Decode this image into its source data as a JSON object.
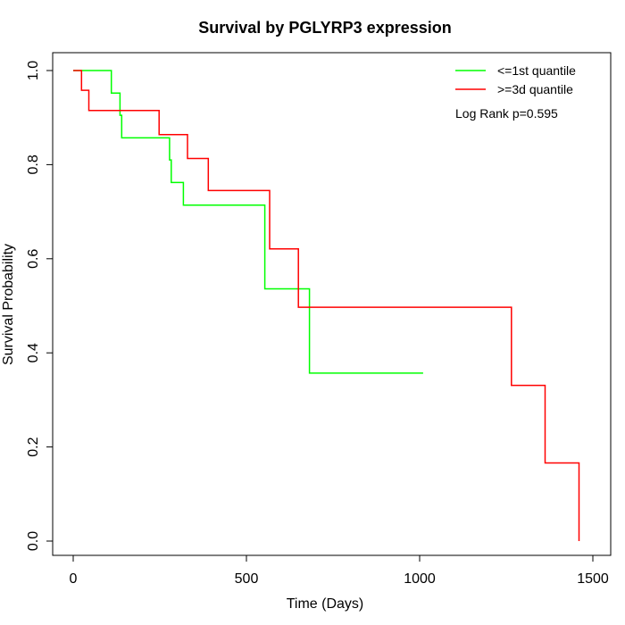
{
  "chart_data": {
    "type": "line",
    "title": "Survival by PGLYRP3 expression",
    "xlabel": "Time (Days)",
    "ylabel": "Survival Probability",
    "xlim": [
      0,
      1500
    ],
    "ylim": [
      0,
      1.0
    ],
    "x_ticks": [
      "0",
      "500",
      "1000",
      "1500"
    ],
    "y_ticks": [
      "0.0",
      "0.2",
      "0.4",
      "0.6",
      "0.8",
      "1.0"
    ],
    "grid": false,
    "legend_position": "top-right",
    "annotation": "Log Rank p=0.595",
    "series": [
      {
        "name": "<=1st quantile",
        "color": "#00ff00",
        "step": true,
        "x": [
          0,
          110,
          110,
          135,
          135,
          140,
          140,
          278,
          278,
          283,
          283,
          318,
          318,
          553,
          553,
          682,
          682,
          1010
        ],
        "y": [
          1.0,
          1.0,
          0.952,
          0.952,
          0.905,
          0.905,
          0.857,
          0.857,
          0.81,
          0.81,
          0.762,
          0.762,
          0.714,
          0.714,
          0.536,
          0.536,
          0.357,
          0.357
        ]
      },
      {
        "name": ">=3d quantile",
        "color": "#ff0000",
        "step": true,
        "x": [
          0,
          24,
          24,
          45,
          45,
          248,
          248,
          330,
          330,
          390,
          390,
          567,
          567,
          650,
          650,
          1265,
          1265,
          1362,
          1362,
          1460,
          1460
        ],
        "y": [
          1.0,
          1.0,
          0.958,
          0.958,
          0.915,
          0.915,
          0.864,
          0.864,
          0.813,
          0.813,
          0.745,
          0.745,
          0.621,
          0.621,
          0.497,
          0.497,
          0.331,
          0.331,
          0.166,
          0.166,
          0.0
        ]
      }
    ]
  }
}
